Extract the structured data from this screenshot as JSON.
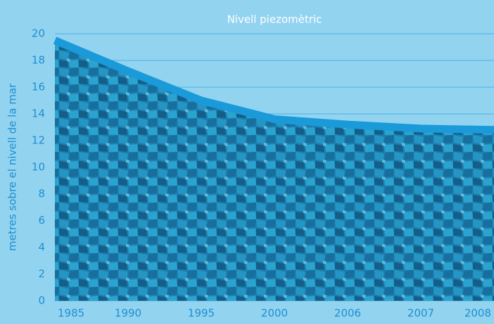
{
  "chart_data": {
    "type": "area",
    "title": "Nivell piezomètric",
    "y_label": "metres sobre el nivell de la mar",
    "categories": [
      "1985",
      "1990",
      "1995",
      "2000",
      "2006",
      "2007",
      "2008"
    ],
    "values": [
      19.5,
      17.2,
      15.0,
      13.6,
      13.2,
      12.9,
      12.8
    ],
    "color": "#1a9ad8",
    "ylim": [
      0,
      20
    ],
    "yticks": [
      0,
      2,
      4,
      6,
      8,
      10,
      12,
      14,
      16,
      18,
      20
    ],
    "grid": true
  }
}
